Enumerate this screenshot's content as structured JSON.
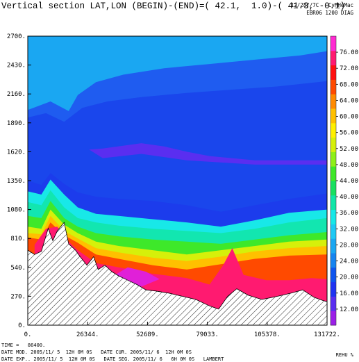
{
  "header": {
    "title": "Vertical section LAT,LON (BEGIN)-(END)=( 42.1,  1.0)-( 41.3, -0.1)",
    "run_line1": "12/28//7C   CvHHeMac",
    "run_line2": "EBR06 1200 DIAG"
  },
  "footer": {
    "time": "TIME =   86400.",
    "line2": "DATE MOD. 2005/11/ 5  12H 0M 0S   DATE CUR. 2005/11/ 6  12H 0M 0S",
    "line3": "DATE EXP.. 2005/11/ 5  12H 0M 0S   DATE SEG. 2005/11/ 6   6H 0M 0S   LAMBERT",
    "unit": "REHU %"
  },
  "chart_data": {
    "type": "heatmap",
    "title": "Vertical section LAT,LON (BEGIN)-(END)=( 42.1,  1.0)-( 41.3, -0.1)",
    "variable": "REHU %",
    "x_ticks": [
      "0.",
      "26344.",
      "52689.",
      "79033.",
      "105378.",
      "131722."
    ],
    "y_ticks": [
      "0.",
      "270.",
      "540.",
      "810.",
      "1080.",
      "1350.",
      "1620.",
      "1890.",
      "2160.",
      "2430.",
      "2700."
    ],
    "xlim": [
      0,
      131722
    ],
    "ylim": [
      0,
      2700
    ],
    "colorbar_ticks": [
      "12.00",
      "16.00",
      "20.00",
      "24.00",
      "28.00",
      "32.00",
      "36.00",
      "40.00",
      "44.00",
      "48.00",
      "52.00",
      "56.00",
      "60.00",
      "64.00",
      "68.00",
      "72.00",
      "76.00"
    ],
    "colorbar_colors": [
      "#9b1fe8",
      "#5a2ef0",
      "#1f33f2",
      "#0f55ee",
      "#1684f0",
      "#1aa7f2",
      "#1ec9f4",
      "#18e8e8",
      "#10e6a8",
      "#18e060",
      "#3ee82a",
      "#8ef018",
      "#d6f00a",
      "#fff000",
      "#ffc000",
      "#ff8a00",
      "#ff4a00",
      "#ff1010",
      "#ff1a70",
      "#ff2ad2"
    ],
    "terrain_profile": [
      [
        0,
        700
      ],
      [
        3000,
        660
      ],
      [
        6000,
        690
      ],
      [
        9000,
        905
      ],
      [
        11000,
        790
      ],
      [
        13000,
        880
      ],
      [
        16000,
        960
      ],
      [
        18000,
        760
      ],
      [
        21000,
        700
      ],
      [
        23000,
        640
      ],
      [
        26000,
        560
      ],
      [
        29000,
        640
      ],
      [
        31000,
        520
      ],
      [
        34000,
        560
      ],
      [
        37000,
        500
      ],
      [
        40000,
        460
      ],
      [
        44000,
        420
      ],
      [
        48000,
        380
      ],
      [
        52000,
        330
      ],
      [
        56000,
        320
      ],
      [
        62000,
        300
      ],
      [
        68000,
        270
      ],
      [
        74000,
        240
      ],
      [
        80000,
        180
      ],
      [
        84000,
        150
      ],
      [
        88000,
        270
      ],
      [
        92000,
        340
      ],
      [
        97000,
        280
      ],
      [
        103000,
        240
      ],
      [
        110000,
        270
      ],
      [
        116000,
        300
      ],
      [
        121000,
        330
      ],
      [
        126000,
        260
      ],
      [
        130000,
        230
      ],
      [
        131722,
        220
      ]
    ],
    "bands": [
      {
        "label": "16-20",
        "top": [
          [
            0,
            2010
          ],
          [
            10000,
            2090
          ],
          [
            18000,
            2000
          ],
          [
            22000,
            2150
          ],
          [
            30000,
            2270
          ],
          [
            42000,
            2340
          ],
          [
            60000,
            2400
          ],
          [
            80000,
            2440
          ],
          [
            100000,
            2480
          ],
          [
            120000,
            2520
          ],
          [
            131722,
            2560
          ]
        ]
      },
      {
        "label": "20-24",
        "top": [
          [
            0,
            1940
          ],
          [
            8000,
            1980
          ],
          [
            16000,
            1900
          ],
          [
            24000,
            2030
          ],
          [
            35000,
            2090
          ],
          [
            50000,
            2130
          ],
          [
            70000,
            2170
          ],
          [
            90000,
            2200
          ],
          [
            110000,
            2230
          ],
          [
            131722,
            2280
          ]
        ]
      },
      {
        "label": "12-16",
        "top": [
          [
            27000,
            1640
          ],
          [
            33000,
            1650
          ],
          [
            50000,
            1700
          ],
          [
            60000,
            1670
          ],
          [
            70000,
            1620
          ],
          [
            80000,
            1580
          ],
          [
            100000,
            1540
          ],
          [
            131722,
            1540
          ]
        ]
      },
      {
        "label": "24-28",
        "top": [
          [
            0,
            1350
          ],
          [
            6000,
            1310
          ],
          [
            10000,
            1420
          ],
          [
            16000,
            1320
          ],
          [
            22000,
            1240
          ],
          [
            30000,
            1200
          ],
          [
            40000,
            1180
          ],
          [
            55000,
            1160
          ],
          [
            70000,
            1120
          ],
          [
            85000,
            1060
          ],
          [
            100000,
            1120
          ],
          [
            115000,
            1180
          ],
          [
            131722,
            1230
          ]
        ]
      },
      {
        "label": "28-32",
        "top": [
          [
            0,
            1250
          ],
          [
            6000,
            1220
          ],
          [
            10000,
            1360
          ],
          [
            16000,
            1220
          ],
          [
            22000,
            1100
          ],
          [
            30000,
            1040
          ],
          [
            40000,
            1020
          ],
          [
            55000,
            990
          ],
          [
            70000,
            960
          ],
          [
            85000,
            920
          ],
          [
            100000,
            980
          ],
          [
            115000,
            1050
          ],
          [
            131722,
            1080
          ]
        ]
      },
      {
        "label": "32-36",
        "top": [
          [
            0,
            1150
          ],
          [
            6000,
            1120
          ],
          [
            10000,
            1260
          ],
          [
            16000,
            1100
          ],
          [
            22000,
            1000
          ],
          [
            30000,
            960
          ],
          [
            40000,
            930
          ],
          [
            55000,
            900
          ],
          [
            70000,
            880
          ],
          [
            85000,
            860
          ],
          [
            100000,
            900
          ],
          [
            115000,
            960
          ],
          [
            131722,
            1000
          ]
        ]
      },
      {
        "label": "36-44",
        "top": [
          [
            0,
            1020
          ],
          [
            6000,
            1000
          ],
          [
            10000,
            1160
          ],
          [
            16000,
            1000
          ],
          [
            22000,
            920
          ],
          [
            30000,
            860
          ],
          [
            40000,
            830
          ],
          [
            55000,
            800
          ],
          [
            70000,
            780
          ],
          [
            85000,
            760
          ],
          [
            100000,
            800
          ],
          [
            115000,
            840
          ],
          [
            131722,
            870
          ]
        ]
      },
      {
        "label": "44-52",
        "top": [
          [
            0,
            920
          ],
          [
            6000,
            900
          ],
          [
            10000,
            1080
          ],
          [
            16000,
            940
          ],
          [
            22000,
            860
          ],
          [
            30000,
            780
          ],
          [
            40000,
            740
          ],
          [
            55000,
            700
          ],
          [
            70000,
            660
          ],
          [
            85000,
            700
          ],
          [
            100000,
            740
          ],
          [
            115000,
            780
          ],
          [
            131722,
            800
          ]
        ]
      },
      {
        "label": "52-60",
        "top": [
          [
            0,
            860
          ],
          [
            6000,
            850
          ],
          [
            10000,
            1020
          ],
          [
            16000,
            880
          ],
          [
            22000,
            810
          ],
          [
            30000,
            720
          ],
          [
            40000,
            680
          ],
          [
            55000,
            630
          ],
          [
            70000,
            600
          ],
          [
            85000,
            640
          ],
          [
            100000,
            690
          ],
          [
            115000,
            720
          ],
          [
            131722,
            740
          ]
        ]
      },
      {
        "label": "60-68",
        "top": [
          [
            0,
            820
          ],
          [
            6000,
            800
          ],
          [
            10000,
            960
          ],
          [
            16000,
            840
          ],
          [
            22000,
            770
          ],
          [
            30000,
            660
          ],
          [
            40000,
            620
          ],
          [
            55000,
            560
          ],
          [
            70000,
            520
          ],
          [
            85000,
            570
          ],
          [
            100000,
            620
          ],
          [
            115000,
            650
          ],
          [
            131722,
            660
          ]
        ]
      },
      {
        "label": "68-76",
        "top": [
          [
            3000,
            750
          ],
          [
            8000,
            900
          ],
          [
            13000,
            920
          ],
          [
            18000,
            780
          ],
          [
            22000,
            700
          ],
          [
            30000,
            580
          ],
          [
            40000,
            540
          ],
          [
            55000,
            480
          ],
          [
            70000,
            440
          ],
          [
            80000,
            380
          ],
          [
            86000,
            560
          ],
          [
            90000,
            720
          ],
          [
            95000,
            470
          ],
          [
            105000,
            420
          ],
          [
            115000,
            420
          ],
          [
            125000,
            440
          ],
          [
            131722,
            430
          ]
        ]
      }
    ],
    "max_area": "72-76"
  }
}
